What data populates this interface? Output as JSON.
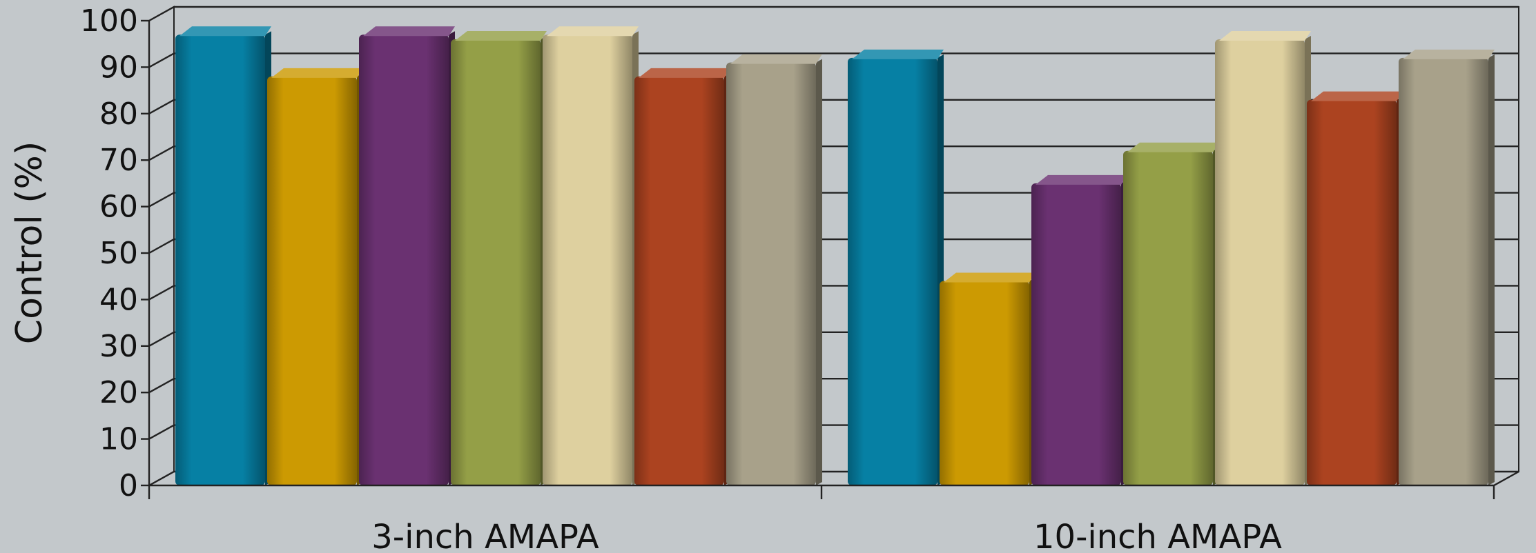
{
  "chart_data": {
    "type": "bar",
    "style": "3d-clustered",
    "categories": [
      "3-inch AMAPA",
      "10-inch AMAPA"
    ],
    "series": [
      {
        "values": [
          97,
          92
        ],
        "color": "#0680a4"
      },
      {
        "values": [
          88,
          44
        ],
        "color": "#cc9a02"
      },
      {
        "values": [
          97,
          65
        ],
        "color": "#6a3171"
      },
      {
        "values": [
          96,
          72
        ],
        "color": "#949f47"
      },
      {
        "values": [
          97,
          96
        ],
        "color": "#ded09f"
      },
      {
        "values": [
          88,
          83
        ],
        "color": "#ac4320"
      },
      {
        "values": [
          91,
          92
        ],
        "color": "#a8a18a"
      }
    ],
    "xlabel": "",
    "ylabel": "Control (%)",
    "ylim": [
      0,
      100
    ],
    "yticks": [
      0,
      10,
      20,
      30,
      40,
      50,
      60,
      70,
      80,
      90,
      100
    ],
    "grid": true,
    "legend": "none"
  }
}
